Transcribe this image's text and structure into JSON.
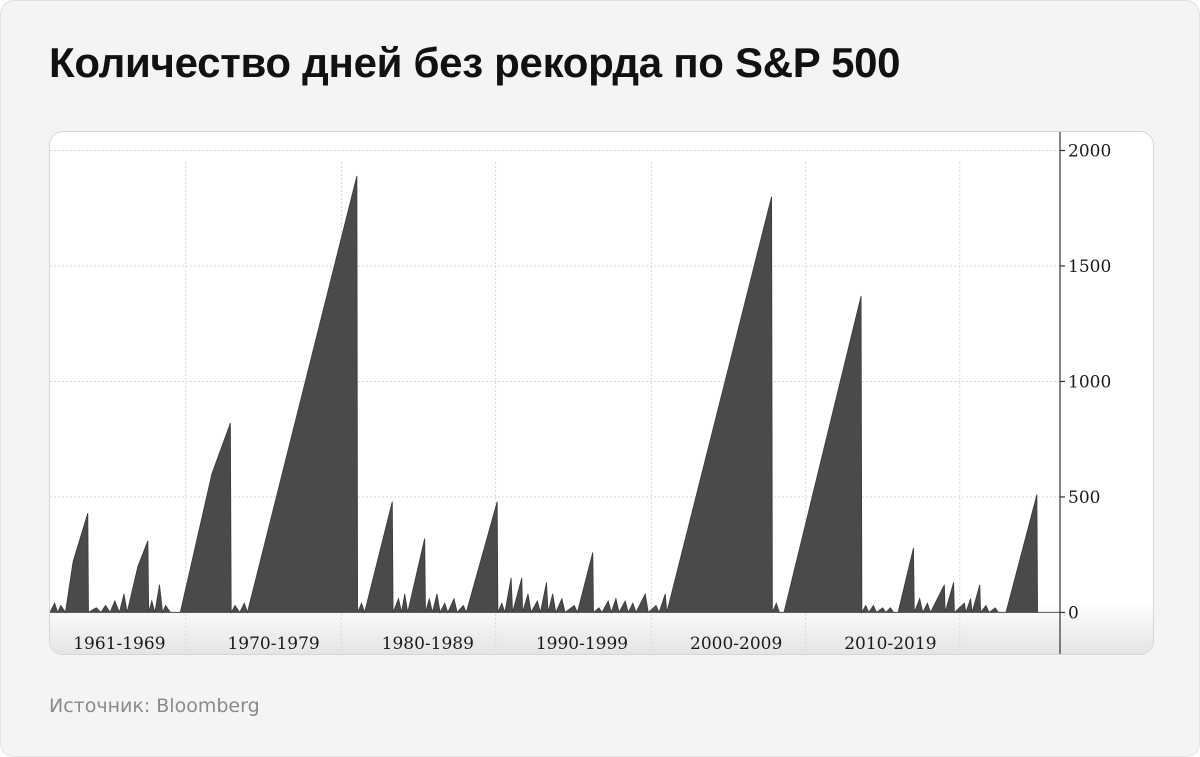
{
  "page": {
    "title": "Количество дней без рекорда по S&P 500",
    "source": "Источник: Bloomberg"
  },
  "colors": {
    "fill": "#4a4a4a",
    "grid": "#d9d9d9",
    "axis": "#333333",
    "card_background": "#f4f4f4"
  },
  "chart_data": {
    "type": "area",
    "title": "Количество дней без рекорда по S&P 500",
    "xlabel": "",
    "ylabel": "",
    "xlim": [
      1960.0,
      2025.5
    ],
    "ylim": [
      -180,
      2080
    ],
    "y_axis_position": "right",
    "grid": true,
    "y_ticks": [
      0,
      500,
      1000,
      1500,
      2000
    ],
    "y_tick_labels": [
      "0",
      "500",
      "1000",
      "1500",
      "2000"
    ],
    "categories": [
      "1961-1969",
      "1970-1979",
      "1980-1989",
      "1990-1999",
      "2000-2009",
      "2010-2019"
    ],
    "category_centers": [
      1964.5,
      1974.5,
      1984.5,
      1994.5,
      2004.5,
      2014.5
    ],
    "decade_lines": [
      1968.8,
      1978.9,
      1988.9,
      1999.0,
      2009.0,
      2019.0
    ],
    "series": [
      {
        "values": [
          [
            1960.0,
            0
          ],
          [
            1960.3,
            40
          ],
          [
            1960.5,
            0
          ],
          [
            1960.7,
            30
          ],
          [
            1961.0,
            0
          ],
          [
            1961.5,
            220
          ],
          [
            1962.45,
            430
          ],
          [
            1962.5,
            0
          ],
          [
            1963.0,
            20
          ],
          [
            1963.3,
            0
          ],
          [
            1963.6,
            30
          ],
          [
            1963.9,
            0
          ],
          [
            1964.2,
            50
          ],
          [
            1964.5,
            0
          ],
          [
            1964.8,
            80
          ],
          [
            1965.0,
            0
          ],
          [
            1965.7,
            200
          ],
          [
            1966.35,
            310
          ],
          [
            1966.4,
            0
          ],
          [
            1966.6,
            50
          ],
          [
            1966.8,
            0
          ],
          [
            1967.1,
            120
          ],
          [
            1967.3,
            0
          ],
          [
            1967.5,
            30
          ],
          [
            1967.8,
            0
          ],
          [
            1968.3,
            0
          ],
          [
            1968.45,
            0
          ],
          [
            1970.5,
            600
          ],
          [
            1971.7,
            820
          ],
          [
            1971.75,
            0
          ],
          [
            1972.0,
            30
          ],
          [
            1972.3,
            0
          ],
          [
            1972.6,
            40
          ],
          [
            1972.8,
            0
          ],
          [
            1979.9,
            1890
          ],
          [
            1979.95,
            0
          ],
          [
            1980.2,
            40
          ],
          [
            1980.4,
            0
          ],
          [
            1982.2,
            480
          ],
          [
            1982.25,
            0
          ],
          [
            1982.6,
            60
          ],
          [
            1982.8,
            0
          ],
          [
            1983.0,
            80
          ],
          [
            1983.2,
            0
          ],
          [
            1984.3,
            320
          ],
          [
            1984.35,
            0
          ],
          [
            1984.6,
            60
          ],
          [
            1984.8,
            0
          ],
          [
            1985.1,
            80
          ],
          [
            1985.3,
            0
          ],
          [
            1985.6,
            40
          ],
          [
            1985.8,
            0
          ],
          [
            1986.2,
            60
          ],
          [
            1986.4,
            0
          ],
          [
            1986.8,
            30
          ],
          [
            1987.0,
            0
          ],
          [
            1989.0,
            480
          ],
          [
            1989.05,
            0
          ],
          [
            1989.3,
            40
          ],
          [
            1989.5,
            0
          ],
          [
            1989.9,
            150
          ],
          [
            1990.0,
            0
          ],
          [
            1990.6,
            150
          ],
          [
            1990.65,
            0
          ],
          [
            1991.0,
            80
          ],
          [
            1991.2,
            0
          ],
          [
            1991.6,
            50
          ],
          [
            1991.8,
            0
          ],
          [
            1992.2,
            130
          ],
          [
            1992.3,
            0
          ],
          [
            1992.6,
            80
          ],
          [
            1992.8,
            0
          ],
          [
            1993.2,
            60
          ],
          [
            1993.4,
            0
          ],
          [
            1994.0,
            30
          ],
          [
            1994.2,
            0
          ],
          [
            1995.2,
            260
          ],
          [
            1995.25,
            0
          ],
          [
            1995.6,
            20
          ],
          [
            1995.8,
            0
          ],
          [
            1996.2,
            50
          ],
          [
            1996.4,
            0
          ],
          [
            1996.7,
            60
          ],
          [
            1996.9,
            0
          ],
          [
            1997.3,
            50
          ],
          [
            1997.5,
            0
          ],
          [
            1997.8,
            40
          ],
          [
            1998.0,
            0
          ],
          [
            1998.6,
            80
          ],
          [
            1998.8,
            0
          ],
          [
            1999.3,
            30
          ],
          [
            1999.5,
            0
          ],
          [
            1999.9,
            80
          ],
          [
            2000.0,
            0
          ],
          [
            2006.8,
            1800
          ],
          [
            2006.85,
            0
          ],
          [
            2007.1,
            40
          ],
          [
            2007.3,
            0
          ],
          [
            2007.6,
            0
          ],
          [
            2012.6,
            1370
          ],
          [
            2012.65,
            0
          ],
          [
            2012.9,
            30
          ],
          [
            2013.1,
            0
          ],
          [
            2013.4,
            30
          ],
          [
            2013.6,
            0
          ],
          [
            2014.0,
            20
          ],
          [
            2014.2,
            0
          ],
          [
            2014.5,
            20
          ],
          [
            2014.7,
            0
          ],
          [
            2015.0,
            0
          ],
          [
            2016.0,
            280
          ],
          [
            2016.05,
            0
          ],
          [
            2016.4,
            60
          ],
          [
            2016.6,
            0
          ],
          [
            2016.9,
            40
          ],
          [
            2017.1,
            0
          ],
          [
            2018.0,
            120
          ],
          [
            2018.05,
            0
          ],
          [
            2018.6,
            130
          ],
          [
            2018.65,
            0
          ],
          [
            2019.3,
            40
          ],
          [
            2019.4,
            0
          ],
          [
            2019.7,
            60
          ],
          [
            2019.8,
            0
          ],
          [
            2020.3,
            120
          ],
          [
            2020.35,
            0
          ],
          [
            2020.7,
            30
          ],
          [
            2020.9,
            0
          ],
          [
            2021.3,
            20
          ],
          [
            2021.5,
            0
          ],
          [
            2022.0,
            0
          ],
          [
            2024.0,
            510
          ],
          [
            2024.05,
            0
          ]
        ]
      }
    ]
  }
}
